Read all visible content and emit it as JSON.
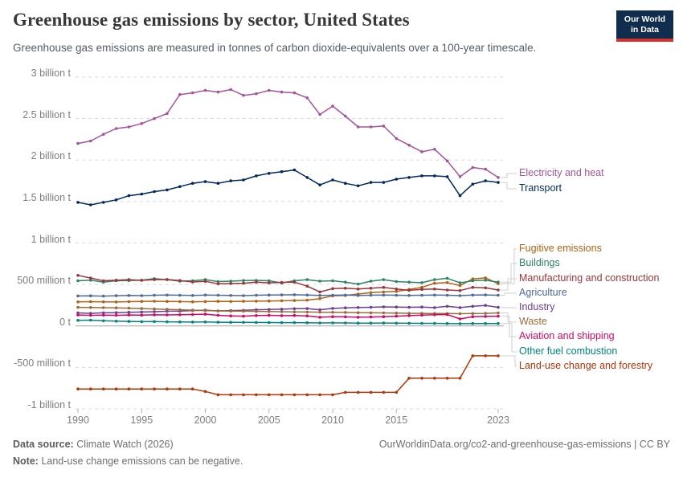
{
  "header": {
    "title": "Greenhouse gas emissions by sector, United States",
    "subtitle": "Greenhouse gas emissions are measured in tonnes of carbon dioxide-equivalents over a 100-year timescale.",
    "logo": {
      "line1": "Our World",
      "line2": "in Data",
      "bg_color": "#102d4e",
      "accent_color": "#d0342c"
    }
  },
  "chart_data": {
    "type": "line",
    "title": "Greenhouse gas emissions by sector, United States",
    "unit": "tonnes of carbon dioxide-equivalents (values in million t)",
    "grid": "dashed horizontal gridlines",
    "legend_position": "right",
    "ylim": [
      -1000,
      3000
    ],
    "x": [
      1990,
      1991,
      1992,
      1993,
      1994,
      1995,
      1996,
      1997,
      1998,
      1999,
      2000,
      2001,
      2002,
      2003,
      2004,
      2005,
      2006,
      2007,
      2008,
      2009,
      2010,
      2011,
      2012,
      2013,
      2014,
      2015,
      2016,
      2017,
      2018,
      2019,
      2020,
      2021,
      2022,
      2023
    ],
    "x_ticks": [
      1990,
      1995,
      2000,
      2005,
      2010,
      2015,
      2023
    ],
    "y_ticks": [
      {
        "value": 3000,
        "label": "3 billion t"
      },
      {
        "value": 2500,
        "label": "2.5 billion t"
      },
      {
        "value": 2000,
        "label": "2 billion t"
      },
      {
        "value": 1500,
        "label": "1.5 billion t"
      },
      {
        "value": 1000,
        "label": "1 billion t"
      },
      {
        "value": 500,
        "label": "500 million t"
      },
      {
        "value": 0,
        "label": "0 t"
      },
      {
        "value": -500,
        "label": "-500 million t"
      },
      {
        "value": -1000,
        "label": "-1 billion t"
      }
    ],
    "series": [
      {
        "name": "Electricity and heat",
        "color": "#a2559c",
        "values": [
          2200,
          2230,
          2310,
          2380,
          2400,
          2440,
          2500,
          2560,
          2790,
          2810,
          2840,
          2820,
          2850,
          2780,
          2800,
          2840,
          2820,
          2810,
          2750,
          2550,
          2650,
          2530,
          2400,
          2400,
          2410,
          2260,
          2180,
          2100,
          2130,
          1990,
          1800,
          1910,
          1890,
          1790
        ]
      },
      {
        "name": "Transport",
        "color": "#00295b",
        "values": [
          1490,
          1460,
          1490,
          1520,
          1570,
          1590,
          1620,
          1640,
          1680,
          1720,
          1740,
          1720,
          1750,
          1760,
          1810,
          1840,
          1860,
          1880,
          1790,
          1700,
          1760,
          1720,
          1690,
          1730,
          1730,
          1770,
          1790,
          1810,
          1810,
          1800,
          1570,
          1710,
          1750,
          1730
        ]
      },
      {
        "name": "Fugitive emissions",
        "color": "#b16214",
        "values": [
          290,
          293,
          291,
          289,
          293,
          296,
          298,
          296,
          294,
          291,
          294,
          297,
          295,
          297,
          299,
          301,
          304,
          307,
          311,
          330,
          363,
          368,
          385,
          401,
          410,
          417,
          440,
          465,
          515,
          523,
          487,
          567,
          580,
          510
        ]
      },
      {
        "name": "Buildings",
        "color": "#2c8465",
        "values": [
          545,
          552,
          528,
          545,
          548,
          552,
          570,
          558,
          540,
          545,
          558,
          535,
          540,
          548,
          550,
          545,
          518,
          545,
          558,
          540,
          545,
          528,
          505,
          540,
          558,
          535,
          528,
          522,
          558,
          575,
          520,
          545,
          552,
          528
        ]
      },
      {
        "name": "Manufacturing and construction",
        "color": "#9a3439",
        "values": [
          610,
          578,
          545,
          552,
          558,
          550,
          558,
          560,
          548,
          530,
          538,
          508,
          512,
          515,
          528,
          520,
          525,
          528,
          480,
          410,
          450,
          455,
          445,
          455,
          465,
          445,
          430,
          440,
          445,
          433,
          427,
          465,
          460,
          433
        ]
      },
      {
        "name": "Agriculture",
        "color": "#4c6a9c",
        "values": [
          362,
          364,
          360,
          365,
          368,
          366,
          370,
          372,
          370,
          368,
          372,
          370,
          368,
          366,
          370,
          372,
          374,
          376,
          372,
          368,
          370,
          372,
          368,
          370,
          372,
          370,
          368,
          370,
          372,
          370,
          366,
          372,
          374,
          370
        ]
      },
      {
        "name": "Industry",
        "color": "#6d3e91",
        "values": [
          157,
          152,
          158,
          160,
          165,
          168,
          172,
          178,
          180,
          185,
          190,
          182,
          185,
          188,
          195,
          198,
          202,
          208,
          210,
          195,
          212,
          218,
          222,
          225,
          230,
          228,
          225,
          228,
          221,
          237,
          221,
          237,
          247,
          224
        ]
      },
      {
        "name": "Waste",
        "color": "#996d39",
        "values": [
          224,
          222,
          220,
          218,
          215,
          210,
          205,
          200,
          195,
          190,
          185,
          182,
          180,
          178,
          176,
          174,
          172,
          170,
          168,
          166,
          165,
          163,
          160,
          158,
          157,
          155,
          153,
          152,
          150,
          150,
          148,
          150,
          152,
          157
        ]
      },
      {
        "name": "Aviation and shipping",
        "color": "#cf0a66",
        "values": [
          132,
          128,
          130,
          128,
          132,
          130,
          134,
          133,
          135,
          138,
          142,
          128,
          122,
          118,
          125,
          128,
          124,
          126,
          122,
          105,
          112,
          110,
          105,
          108,
          112,
          118,
          124,
          130,
          135,
          137,
          85,
          112,
          115,
          118
        ]
      },
      {
        "name": "Other fuel combustion",
        "color": "#00847e",
        "values": [
          67,
          70,
          62,
          58,
          55,
          52,
          53,
          50,
          48,
          47,
          48,
          45,
          44,
          43,
          42,
          41,
          40,
          40,
          38,
          36,
          37,
          36,
          34,
          34,
          35,
          33,
          32,
          31,
          31,
          30,
          28,
          30,
          30,
          30
        ]
      },
      {
        "name": "Land-use change and forestry",
        "color": "#b13507",
        "values": [
          -760,
          -760,
          -760,
          -760,
          -760,
          -760,
          -760,
          -760,
          -760,
          -760,
          -790,
          -830,
          -830,
          -830,
          -830,
          -830,
          -830,
          -830,
          -830,
          -830,
          -830,
          -800,
          -800,
          -800,
          -800,
          -800,
          -630,
          -630,
          -630,
          -630,
          -630,
          -360,
          -360,
          -360
        ]
      }
    ]
  },
  "footer": {
    "source_label": "Data source:",
    "source_value": "Climate Watch (2026)",
    "link": "OurWorldinData.org/co2-and-greenhouse-gas-emissions | CC BY",
    "note_label": "Note:",
    "note_value": "Land-use change emissions can be negative."
  }
}
